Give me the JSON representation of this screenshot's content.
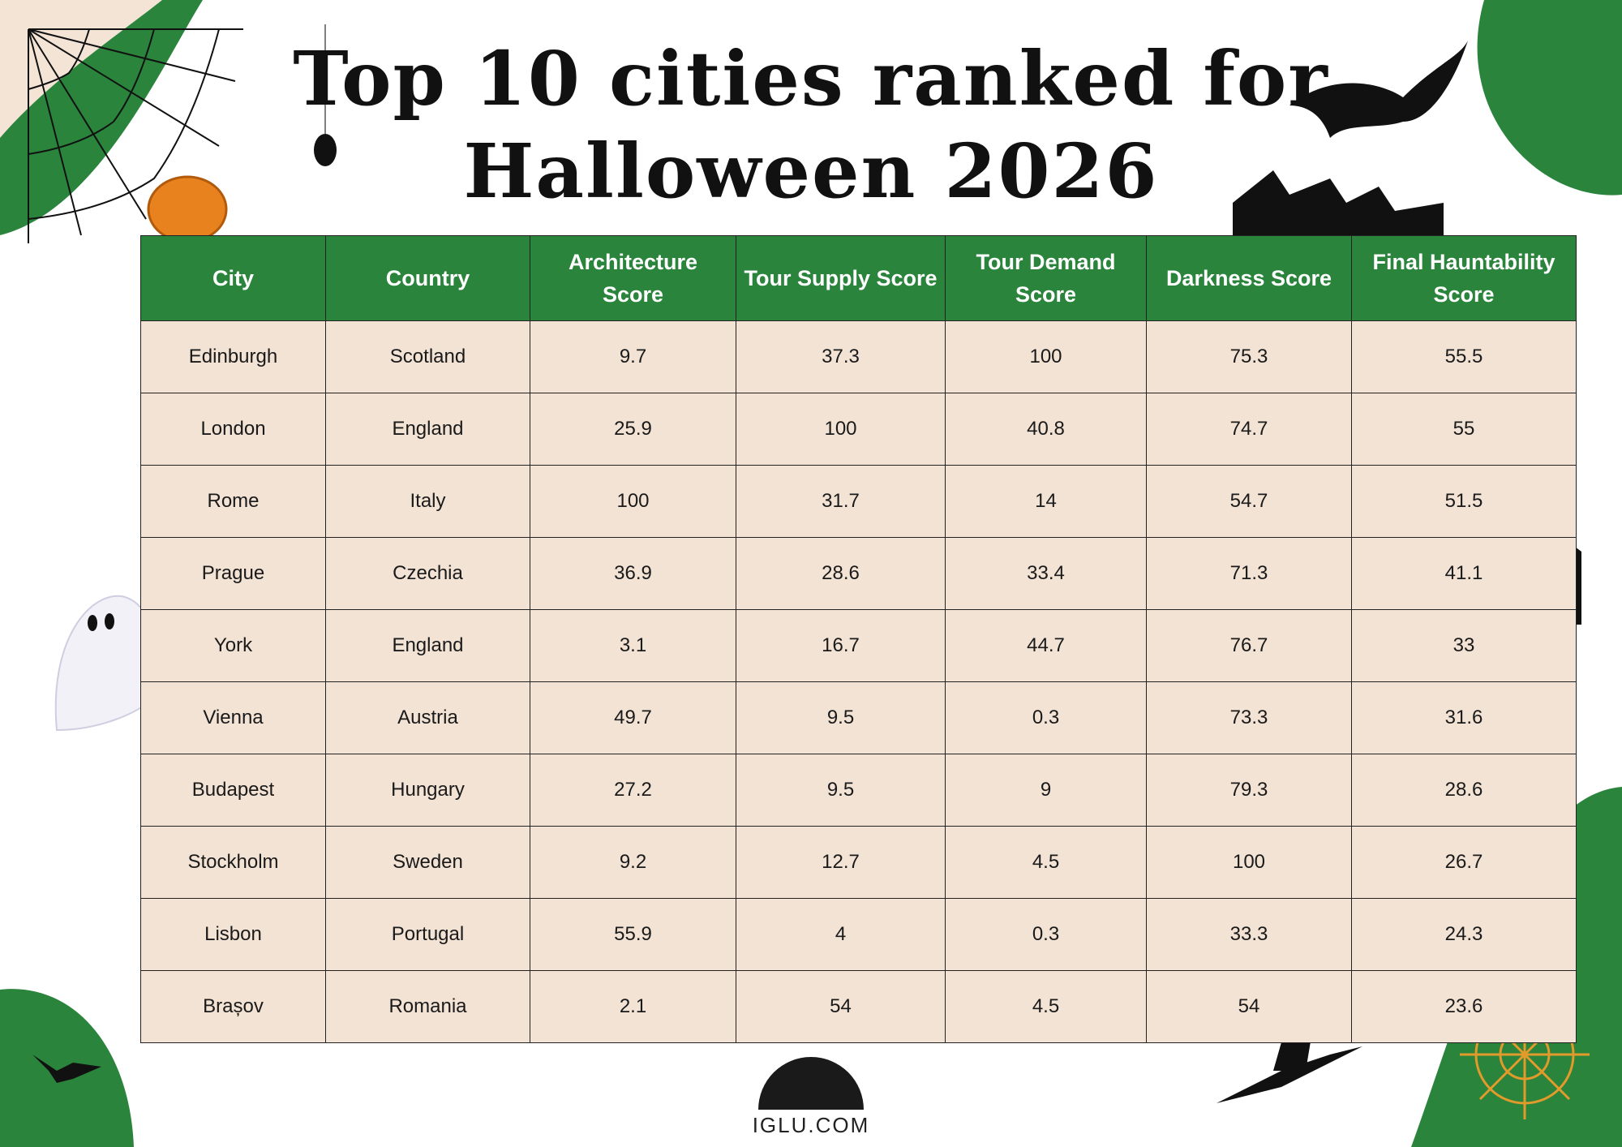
{
  "header": {
    "title_lines": [
      "Top 10 cities ranked for",
      "Halloween 2026"
    ]
  },
  "table": {
    "columns": [
      "City",
      "Country",
      "Architecture Score",
      "Tour Supply Score",
      "Tour Demand Score",
      "Darkness Score",
      "Final Hauntability Score"
    ],
    "rows": [
      [
        "Edinburgh",
        "Scotland",
        9.7,
        37.3,
        100,
        75.3,
        55.5
      ],
      [
        "London",
        "England",
        25.9,
        100,
        40.8,
        74.7,
        55
      ],
      [
        "Rome",
        "Italy",
        100,
        31.7,
        14,
        54.7,
        51.5
      ],
      [
        "Prague",
        "Czechia",
        36.9,
        28.6,
        33.4,
        71.3,
        41.1
      ],
      [
        "York",
        "England",
        3.1,
        16.7,
        44.7,
        76.7,
        33
      ],
      [
        "Vienna",
        "Austria",
        49.7,
        9.5,
        0.3,
        73.3,
        31.6
      ],
      [
        "Budapest",
        "Hungary",
        27.2,
        9.5,
        9,
        79.3,
        28.6
      ],
      [
        "Stockholm",
        "Sweden",
        9.2,
        12.7,
        4.5,
        100,
        26.7
      ],
      [
        "Lisbon",
        "Portugal",
        55.9,
        4,
        0.3,
        33.3,
        24.3
      ],
      [
        "Brașov",
        "Romania",
        2.1,
        54,
        4.5,
        54,
        23.6
      ]
    ]
  },
  "footer": {
    "logo": "IGLU.COM"
  }
}
